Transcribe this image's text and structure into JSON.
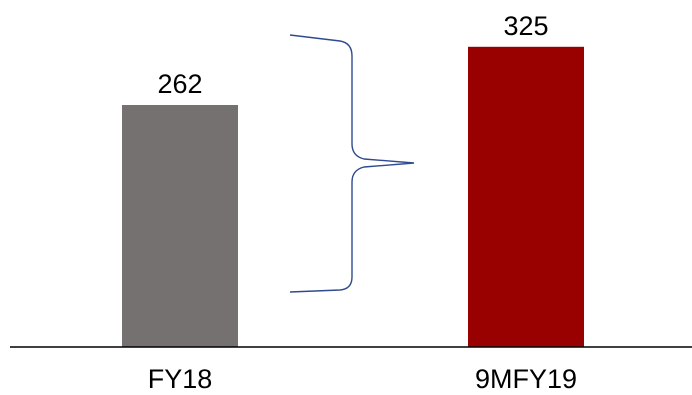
{
  "chart_data": {
    "type": "bar",
    "categories": [
      "FY18",
      "9MFY19"
    ],
    "values": [
      262,
      325
    ],
    "colors": [
      "#767171",
      "#990000"
    ],
    "data_labels": [
      "262",
      "325"
    ],
    "ylim": [
      0,
      350
    ],
    "grid": false,
    "annotation": "curly brace spanning from FY18 bar height to 9MFY19 bar, indicating growth",
    "brace_color": "#2F4A8F",
    "axis_color": "#000000"
  }
}
